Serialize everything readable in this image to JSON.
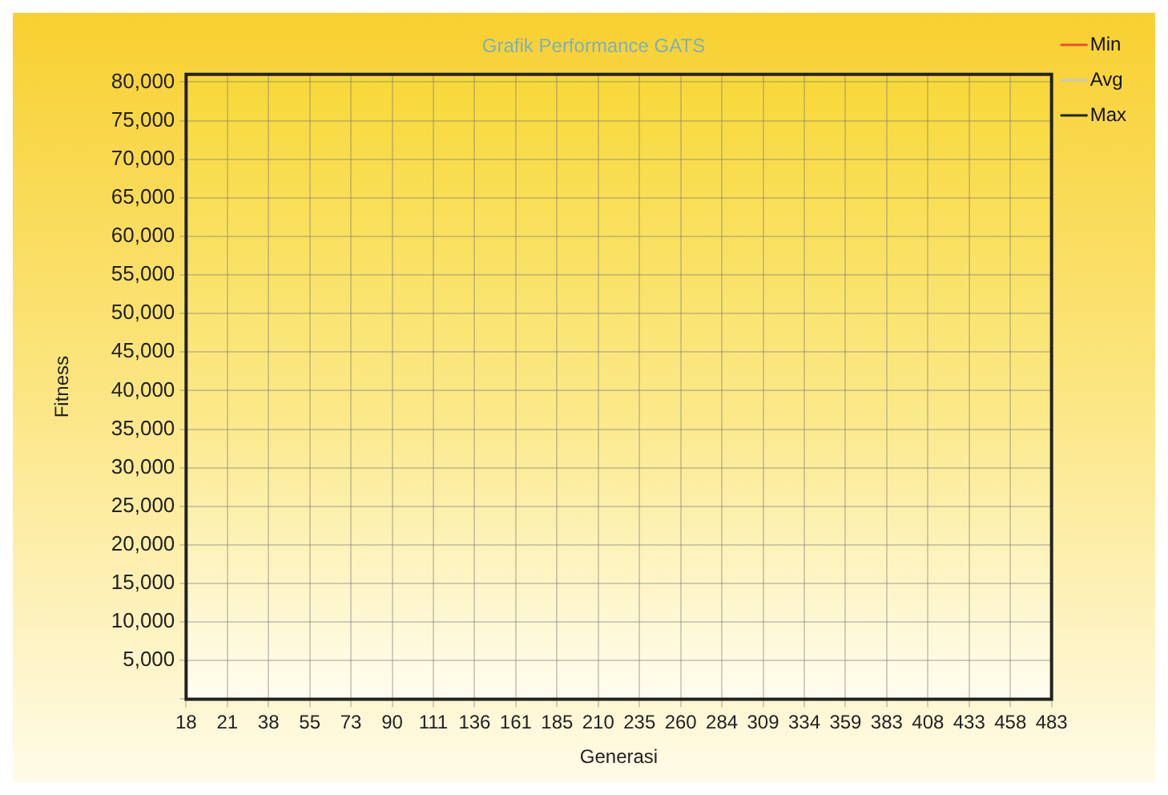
{
  "chart_data": {
    "type": "line",
    "title": "Grafik Performance GATS",
    "xlabel": "Generasi",
    "ylabel": "Fitness",
    "categories": [
      "18",
      "21",
      "38",
      "55",
      "73",
      "90",
      "111",
      "136",
      "161",
      "185",
      "210",
      "235",
      "260",
      "284",
      "309",
      "334",
      "359",
      "383",
      "408",
      "433",
      "458",
      "483"
    ],
    "series": [
      {
        "name": "Min",
        "color": "#e8502a",
        "values": [
          null,
          null,
          null,
          null,
          null,
          null,
          null,
          null,
          null,
          null,
          null,
          null,
          null,
          null,
          null,
          null,
          null,
          null,
          null,
          null,
          null,
          null
        ]
      },
      {
        "name": "Avg",
        "color": "#c8c8c8",
        "values": [
          null,
          null,
          null,
          null,
          null,
          null,
          null,
          null,
          null,
          null,
          null,
          null,
          null,
          null,
          null,
          null,
          null,
          null,
          null,
          null,
          null,
          null
        ]
      },
      {
        "name": "Max",
        "color": "#222222",
        "values": [
          null,
          null,
          null,
          null,
          null,
          null,
          null,
          null,
          null,
          null,
          null,
          null,
          null,
          null,
          null,
          null,
          null,
          null,
          null,
          null,
          null,
          null
        ]
      }
    ],
    "ylim": [
      0,
      81000
    ],
    "yticks": [
      {
        "value": 0,
        "label": null
      },
      {
        "value": 5000,
        "label": "5,000"
      },
      {
        "value": 10000,
        "label": "10,000"
      },
      {
        "value": 15000,
        "label": "15,000"
      },
      {
        "value": 20000,
        "label": "20,000"
      },
      {
        "value": 25000,
        "label": "25,000"
      },
      {
        "value": 30000,
        "label": "30,000"
      },
      {
        "value": 35000,
        "label": "35,000"
      },
      {
        "value": 40000,
        "label": "40,000"
      },
      {
        "value": 45000,
        "label": "45,000"
      },
      {
        "value": 50000,
        "label": "50,000"
      },
      {
        "value": 55000,
        "label": "55,000"
      },
      {
        "value": 60000,
        "label": "60,000"
      },
      {
        "value": 65000,
        "label": "65,000"
      },
      {
        "value": 70000,
        "label": "70,000"
      },
      {
        "value": 75000,
        "label": "75,000"
      },
      {
        "value": 80000,
        "label": "80,000"
      }
    ],
    "grid": true,
    "legend": "top right"
  }
}
